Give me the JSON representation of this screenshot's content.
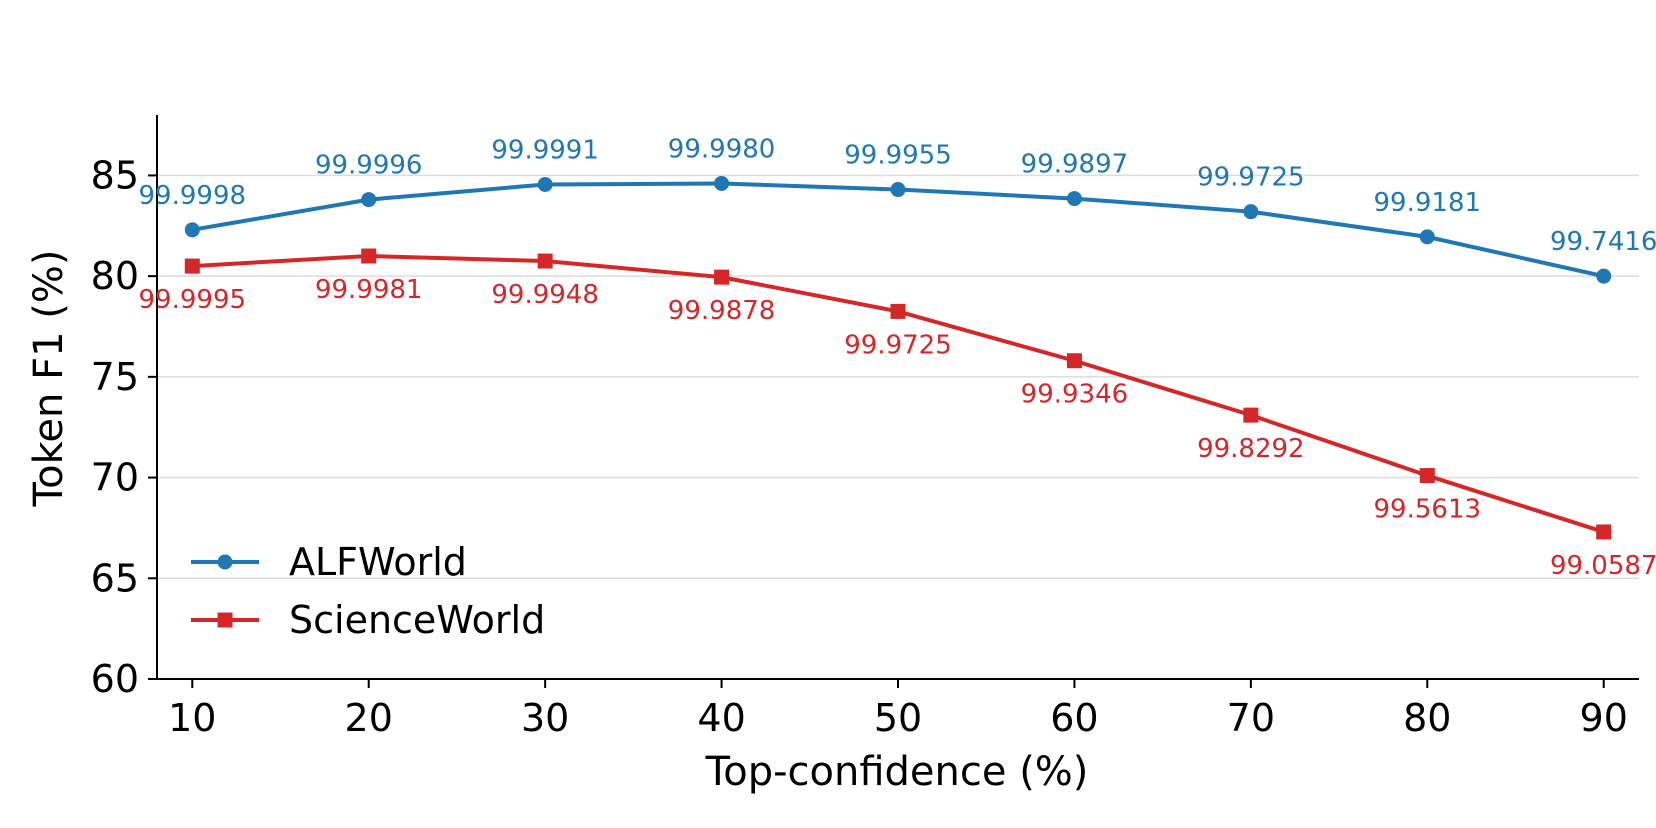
{
  "chart_data": {
    "type": "line",
    "title": "",
    "xlabel": "Top-confidence (%)",
    "ylabel": "Token F1 (%)",
    "x": [
      10,
      20,
      30,
      40,
      50,
      60,
      70,
      80,
      90
    ],
    "xlim": [
      8,
      92
    ],
    "ylim": [
      60,
      88
    ],
    "xticks": [
      10,
      20,
      30,
      40,
      50,
      60,
      70,
      80,
      90
    ],
    "yticks": [
      60,
      65,
      70,
      75,
      80,
      85
    ],
    "grid": "horizontal",
    "legend": "lower-left",
    "series": [
      {
        "name": "ALFWorld",
        "color": "#1f77b4",
        "marker": "circle",
        "label_position": "above",
        "values": [
          82.3,
          83.8,
          84.55,
          84.6,
          84.3,
          83.85,
          83.2,
          81.95,
          80.0
        ],
        "labels": [
          "99.9998",
          "99.9996",
          "99.9991",
          "99.9980",
          "99.9955",
          "99.9897",
          "99.9725",
          "99.9181",
          "99.7416"
        ]
      },
      {
        "name": "ScienceWorld",
        "color": "#d62728",
        "marker": "square",
        "label_position": "below",
        "values": [
          80.5,
          81.0,
          80.75,
          79.95,
          78.25,
          75.8,
          73.1,
          70.1,
          67.3
        ],
        "labels": [
          "99.9995",
          "99.9981",
          "99.9948",
          "99.9878",
          "99.9725",
          "99.9346",
          "99.8292",
          "99.5613",
          "99.0587"
        ]
      }
    ]
  }
}
